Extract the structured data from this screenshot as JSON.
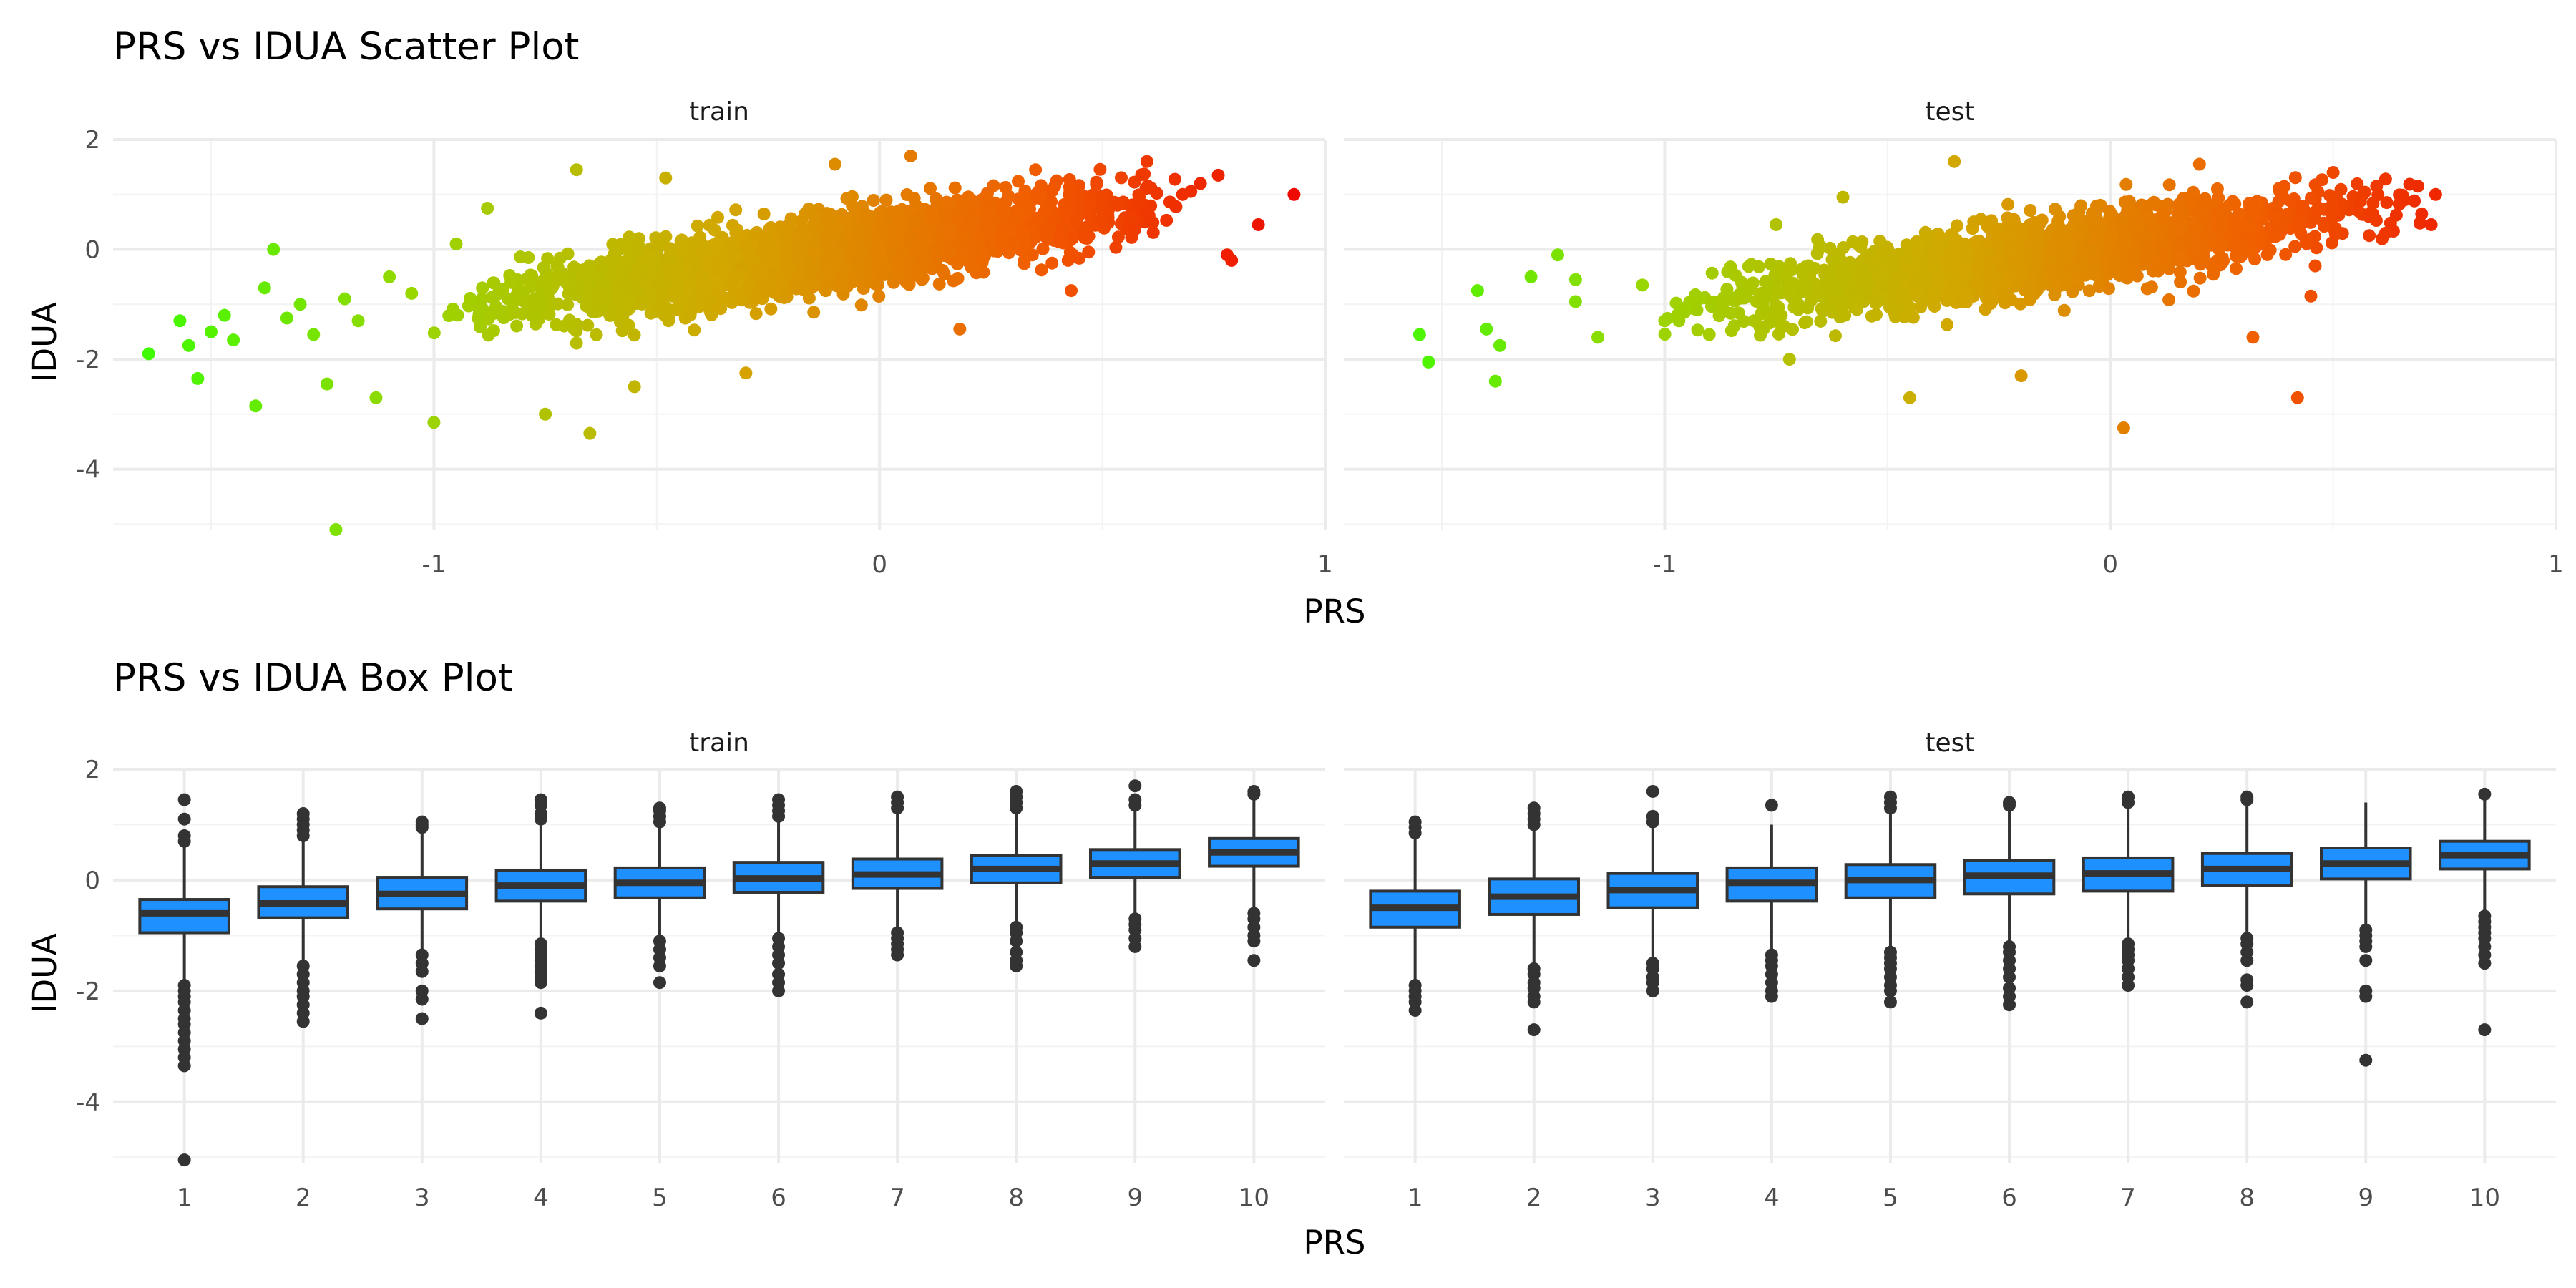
{
  "chart_data": [
    {
      "type": "scatter",
      "title": "PRS vs IDUA Scatter Plot",
      "xlabel": "PRS",
      "ylabel": "IDUA",
      "xlim": [
        -1.72,
        1.0
      ],
      "ylim": [
        -5.1,
        2.0
      ],
      "x_ticks": [
        "-1",
        "0",
        "1"
      ],
      "x_tick_values": [
        -1,
        0,
        1
      ],
      "y_ticks": [
        "2",
        "0",
        "-2",
        "-4"
      ],
      "y_tick_values": [
        2,
        0,
        -2,
        -4
      ],
      "grid": true,
      "color_gradient": [
        "#33ff00",
        "#99d600",
        "#d2a800",
        "#f06000",
        "#ee0000"
      ],
      "facets": [
        {
          "label": "train",
          "points": [
            [
              -1.64,
              -1.9
            ],
            [
              -1.57,
              -1.3
            ],
            [
              -1.55,
              -1.75
            ],
            [
              -1.53,
              -2.35
            ],
            [
              -1.5,
              -1.5
            ],
            [
              -1.47,
              -1.2
            ],
            [
              -1.45,
              -1.65
            ],
            [
              -1.4,
              -2.85
            ],
            [
              -1.38,
              -0.7
            ],
            [
              -1.36,
              0.0
            ],
            [
              -1.33,
              -1.25
            ],
            [
              -1.3,
              -1.0
            ],
            [
              -1.27,
              -1.55
            ],
            [
              -1.24,
              -2.45
            ],
            [
              -1.2,
              -0.9
            ],
            [
              -1.17,
              -1.3
            ],
            [
              -1.13,
              -2.7
            ],
            [
              -1.1,
              -0.5
            ],
            [
              -1.05,
              -0.8
            ],
            [
              -1.0,
              -3.15
            ],
            [
              -1.22,
              -5.1
            ],
            [
              -0.95,
              0.1
            ],
            [
              -0.88,
              0.75
            ],
            [
              -0.75,
              -3.0
            ],
            [
              -0.68,
              1.45
            ],
            [
              -0.65,
              -3.35
            ],
            [
              -0.55,
              -2.5
            ],
            [
              -0.48,
              1.3
            ],
            [
              -0.3,
              -2.25
            ],
            [
              -0.1,
              1.55
            ],
            [
              0.07,
              1.7
            ],
            [
              0.18,
              -1.45
            ],
            [
              0.35,
              1.45
            ],
            [
              0.43,
              -0.75
            ],
            [
              0.5,
              0.8
            ],
            [
              0.6,
              1.6
            ],
            [
              0.68,
              1.0
            ],
            [
              0.72,
              1.2
            ],
            [
              0.76,
              1.35
            ],
            [
              0.78,
              -0.1
            ],
            [
              0.79,
              -0.2
            ],
            [
              0.85,
              0.45
            ],
            [
              0.93,
              1.0
            ]
          ]
        },
        {
          "label": "test",
          "points": [
            [
              -1.55,
              -1.55
            ],
            [
              -1.53,
              -2.05
            ],
            [
              -1.42,
              -0.75
            ],
            [
              -1.4,
              -1.45
            ],
            [
              -1.38,
              -2.4
            ],
            [
              -1.37,
              -1.75
            ],
            [
              -1.3,
              -0.5
            ],
            [
              -1.24,
              -0.1
            ],
            [
              -1.2,
              -0.95
            ],
            [
              -1.2,
              -0.55
            ],
            [
              -1.15,
              -1.6
            ],
            [
              -1.05,
              -0.65
            ],
            [
              -1.0,
              -1.3
            ],
            [
              -0.95,
              -1.05
            ],
            [
              -0.9,
              -1.55
            ],
            [
              -0.8,
              -1.3
            ],
            [
              -0.75,
              0.45
            ],
            [
              -0.72,
              -2.0
            ],
            [
              -0.6,
              0.95
            ],
            [
              -0.45,
              -2.7
            ],
            [
              -0.35,
              1.6
            ],
            [
              -0.2,
              -2.3
            ],
            [
              0.03,
              -3.25
            ],
            [
              0.2,
              1.55
            ],
            [
              0.32,
              -1.6
            ],
            [
              0.45,
              -0.85
            ],
            [
              0.42,
              -2.7
            ],
            [
              0.5,
              1.4
            ],
            [
              0.58,
              0.6
            ],
            [
              0.66,
              0.9
            ],
            [
              0.69,
              1.15
            ],
            [
              0.72,
              0.45
            ],
            [
              0.73,
              1.0
            ]
          ]
        }
      ]
    },
    {
      "type": "box",
      "title": "PRS vs IDUA Box Plot",
      "xlabel": "PRS",
      "ylabel": "IDUA",
      "categories": [
        "1",
        "2",
        "3",
        "4",
        "5",
        "6",
        "7",
        "8",
        "9",
        "10"
      ],
      "ylim": [
        -5.1,
        2.0
      ],
      "y_ticks": [
        "2",
        "0",
        "-2",
        "-4"
      ],
      "y_tick_values": [
        2,
        0,
        -2,
        -4
      ],
      "grid": true,
      "box_color": "#1e90ff",
      "facets": [
        {
          "label": "train",
          "boxes": [
            {
              "q1": -0.95,
              "median": -0.6,
              "q3": -0.35,
              "lo": -1.85,
              "hi": 0.6,
              "outliers": [
                1.45,
                1.1,
                0.8,
                0.7,
                -1.9,
                -2.0,
                -2.1,
                -2.2,
                -2.35,
                -2.5,
                -2.6,
                -2.75,
                -2.9,
                -3.05,
                -3.2,
                -3.35,
                -5.05
              ]
            },
            {
              "q1": -0.68,
              "median": -0.42,
              "q3": -0.12,
              "lo": -1.5,
              "hi": 0.7,
              "outliers": [
                1.2,
                1.1,
                1.0,
                0.9,
                0.8,
                -1.55,
                -1.7,
                -1.85,
                -2.0,
                -2.1,
                -2.25,
                -2.4,
                -2.55
              ]
            },
            {
              "q1": -0.52,
              "median": -0.25,
              "q3": 0.05,
              "lo": -1.3,
              "hi": 0.9,
              "outliers": [
                1.05,
                1.0,
                0.95,
                -1.35,
                -1.5,
                -1.65,
                -2.0,
                -2.15,
                -2.5
              ]
            },
            {
              "q1": -0.38,
              "median": -0.1,
              "q3": 0.18,
              "lo": -1.1,
              "hi": 1.0,
              "outliers": [
                1.45,
                1.35,
                1.2,
                1.1,
                -1.15,
                -1.25,
                -1.35,
                -1.45,
                -1.55,
                -1.65,
                -1.75,
                -1.85,
                -2.4
              ]
            },
            {
              "q1": -0.32,
              "median": -0.05,
              "q3": 0.22,
              "lo": -1.1,
              "hi": 1.0,
              "outliers": [
                1.3,
                1.25,
                1.15,
                1.05,
                -1.1,
                -1.25,
                -1.4,
                -1.55,
                -1.85
              ]
            },
            {
              "q1": -0.22,
              "median": 0.03,
              "q3": 0.32,
              "lo": -1.0,
              "hi": 1.1,
              "outliers": [
                1.45,
                1.35,
                1.25,
                1.15,
                -1.05,
                -1.2,
                -1.35,
                -1.5,
                -1.7,
                -1.85,
                -2.0
              ]
            },
            {
              "q1": -0.15,
              "median": 0.1,
              "q3": 0.38,
              "lo": -0.9,
              "hi": 1.2,
              "outliers": [
                1.5,
                1.4,
                1.3,
                -0.95,
                -1.05,
                -1.15,
                -1.25,
                -1.35
              ]
            },
            {
              "q1": -0.05,
              "median": 0.2,
              "q3": 0.45,
              "lo": -0.8,
              "hi": 1.2,
              "outliers": [
                1.6,
                1.5,
                1.4,
                1.3,
                -0.85,
                -0.95,
                -1.1,
                -1.3,
                -1.45,
                -1.55
              ]
            },
            {
              "q1": 0.05,
              "median": 0.3,
              "q3": 0.55,
              "lo": -0.7,
              "hi": 1.3,
              "outliers": [
                1.7,
                1.45,
                1.35,
                -0.7,
                -0.8,
                -0.9,
                -1.05,
                -1.2
              ]
            },
            {
              "q1": 0.25,
              "median": 0.5,
              "q3": 0.75,
              "lo": -0.5,
              "hi": 1.5,
              "outliers": [
                1.6,
                1.55,
                -0.6,
                -0.7,
                -0.85,
                -1.0,
                -1.1,
                -1.45
              ]
            }
          ]
        },
        {
          "label": "test",
          "boxes": [
            {
              "q1": -0.85,
              "median": -0.5,
              "q3": -0.2,
              "lo": -1.85,
              "hi": 0.75,
              "outliers": [
                1.05,
                0.95,
                0.85,
                -1.9,
                -2.0,
                -2.1,
                -2.2,
                -2.35
              ]
            },
            {
              "q1": -0.62,
              "median": -0.3,
              "q3": 0.02,
              "lo": -1.55,
              "hi": 0.9,
              "outliers": [
                1.3,
                1.2,
                1.1,
                1.0,
                -1.6,
                -1.7,
                -1.85,
                -1.95,
                -2.1,
                -2.2,
                -2.7
              ]
            },
            {
              "q1": -0.5,
              "median": -0.18,
              "q3": 0.12,
              "lo": -1.45,
              "hi": 1.0,
              "outliers": [
                1.6,
                1.15,
                1.05,
                -1.5,
                -1.6,
                -1.75,
                -1.85,
                -2.0
              ]
            },
            {
              "q1": -0.38,
              "median": -0.05,
              "q3": 0.22,
              "lo": -1.3,
              "hi": 1.0,
              "outliers": [
                1.35,
                -1.35,
                -1.45,
                -1.55,
                -1.7,
                -1.85,
                -2.0,
                -2.1
              ]
            },
            {
              "q1": -0.32,
              "median": 0.0,
              "q3": 0.28,
              "lo": -1.25,
              "hi": 1.2,
              "outliers": [
                1.5,
                1.4,
                1.3,
                -1.3,
                -1.4,
                -1.5,
                -1.6,
                -1.75,
                -1.9,
                -2.0,
                -2.2
              ]
            },
            {
              "q1": -0.25,
              "median": 0.08,
              "q3": 0.35,
              "lo": -1.15,
              "hi": 1.25,
              "outliers": [
                1.4,
                1.35,
                -1.2,
                -1.3,
                -1.45,
                -1.6,
                -1.75,
                -1.95,
                -2.1,
                -2.25
              ]
            },
            {
              "q1": -0.2,
              "median": 0.12,
              "q3": 0.4,
              "lo": -1.1,
              "hi": 1.3,
              "outliers": [
                1.5,
                1.4,
                -1.15,
                -1.25,
                -1.35,
                -1.45,
                -1.6,
                -1.75,
                -1.9
              ]
            },
            {
              "q1": -0.1,
              "median": 0.2,
              "q3": 0.48,
              "lo": -1.0,
              "hi": 1.35,
              "outliers": [
                1.5,
                1.45,
                -1.05,
                -1.15,
                -1.3,
                -1.45,
                -1.8,
                -1.9,
                -2.2
              ]
            },
            {
              "q1": 0.02,
              "median": 0.3,
              "q3": 0.58,
              "lo": -0.85,
              "hi": 1.4,
              "outliers": [
                -0.9,
                -1.0,
                -1.1,
                -1.2,
                -1.45,
                -2.0,
                -2.1,
                -3.25
              ]
            },
            {
              "q1": 0.2,
              "median": 0.45,
              "q3": 0.7,
              "lo": -0.6,
              "hi": 1.5,
              "outliers": [
                1.55,
                -0.65,
                -0.75,
                -0.85,
                -0.95,
                -1.05,
                -1.2,
                -1.35,
                -1.5,
                -2.7
              ]
            }
          ]
        }
      ]
    }
  ]
}
